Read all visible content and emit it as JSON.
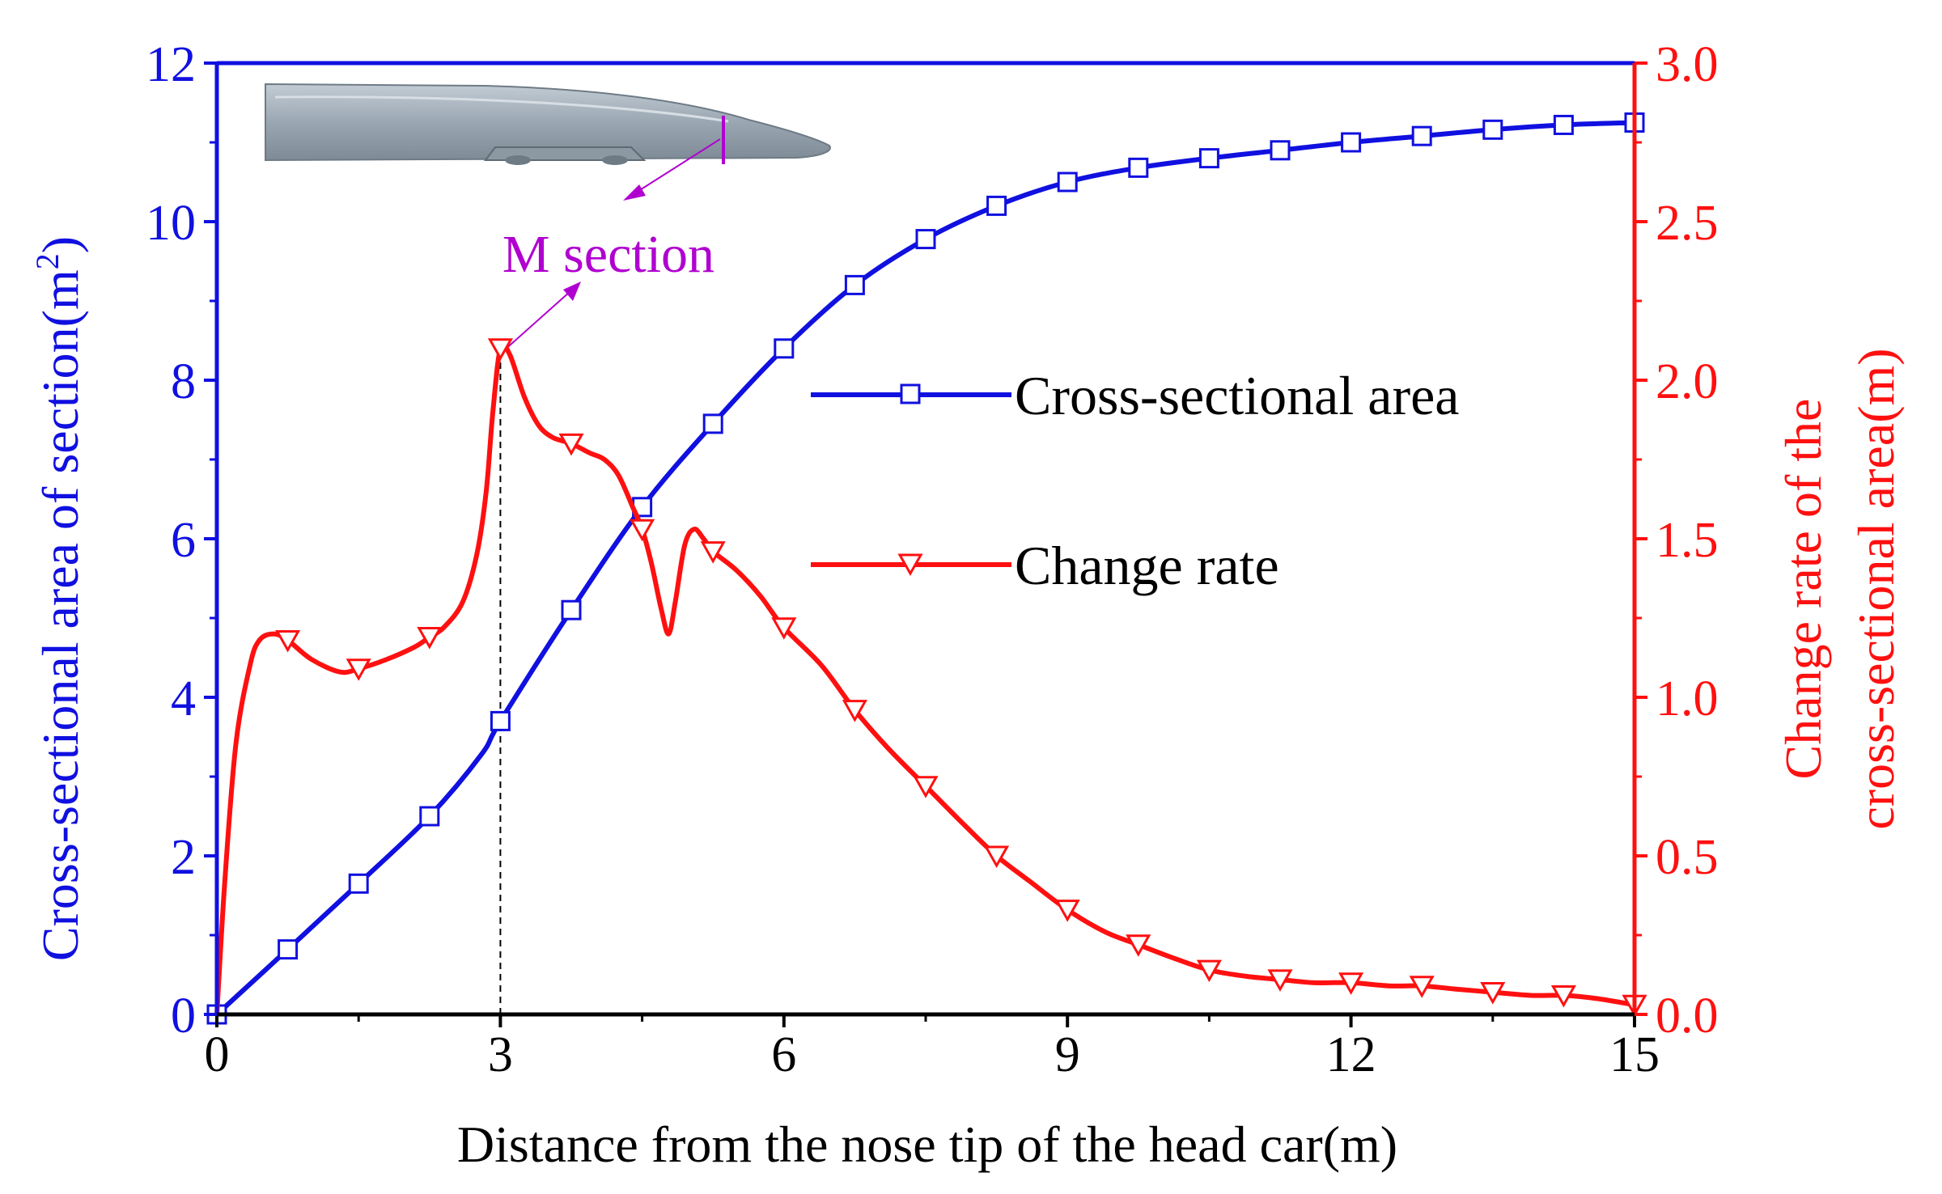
{
  "chart_data": {
    "type": "line",
    "title": "",
    "xlabel": "Distance from the nose tip of the head car(m)",
    "ylabel_left": "Cross-sectional area of section(m²)",
    "ylabel_left_main": "Cross-sectional area of section(m",
    "ylabel_left_sup": "2",
    "ylabel_left_close": ")",
    "ylabel_right": [
      "Change rate of the",
      "cross-sectional area(m)"
    ],
    "xlim": [
      0,
      15
    ],
    "ylim_left": [
      0,
      12
    ],
    "ylim_right": [
      0,
      3.0
    ],
    "x_ticks": [
      0,
      3,
      6,
      9,
      12,
      15
    ],
    "x_tick_labels": [
      "0",
      "3",
      "6",
      "9",
      "12",
      "15"
    ],
    "y_left_ticks": [
      0,
      2,
      4,
      6,
      8,
      10,
      12
    ],
    "y_left_tick_labels": [
      "0",
      "2",
      "4",
      "6",
      "8",
      "10",
      "12"
    ],
    "y_right_ticks": [
      0,
      0.5,
      1.0,
      1.5,
      2.0,
      2.5,
      3.0
    ],
    "y_right_tick_labels": [
      "0.0",
      "0.5",
      "1.0",
      "1.5",
      "2.0",
      "2.5",
      "3.0"
    ],
    "colors": {
      "area": "#1010e0",
      "rate": "#ff1010",
      "annotation": "#b000d0",
      "axis_x": "#000000"
    },
    "legend": {
      "placement": "center-right",
      "entries": [
        "Cross-sectional area",
        "Change rate"
      ]
    },
    "annotation": {
      "label": "M section",
      "x": 3.0
    },
    "series": [
      {
        "name": "Cross-sectional area",
        "axis": "left",
        "marker": "square",
        "curve": [
          [
            0,
            0
          ],
          [
            0.75,
            0.82
          ],
          [
            1.5,
            1.65
          ],
          [
            2.25,
            2.5
          ],
          [
            2.8,
            3.28
          ],
          [
            3.0,
            3.7
          ],
          [
            3.75,
            5.1
          ],
          [
            4.5,
            6.4
          ],
          [
            5.25,
            7.45
          ],
          [
            6.0,
            8.4
          ],
          [
            6.75,
            9.2
          ],
          [
            7.5,
            9.78
          ],
          [
            8.25,
            10.2
          ],
          [
            9.0,
            10.5
          ],
          [
            9.75,
            10.68
          ],
          [
            10.5,
            10.8
          ],
          [
            11.25,
            10.9
          ],
          [
            12.0,
            11.0
          ],
          [
            12.75,
            11.08
          ],
          [
            13.5,
            11.16
          ],
          [
            14.25,
            11.22
          ],
          [
            15.0,
            11.25
          ]
        ],
        "markers": [
          [
            0,
            0
          ],
          [
            0.75,
            0.82
          ],
          [
            1.5,
            1.65
          ],
          [
            2.25,
            2.5
          ],
          [
            3.0,
            3.7
          ],
          [
            3.75,
            5.1
          ],
          [
            4.5,
            6.4
          ],
          [
            5.25,
            7.45
          ],
          [
            6.0,
            8.4
          ],
          [
            6.75,
            9.2
          ],
          [
            7.5,
            9.78
          ],
          [
            8.25,
            10.2
          ],
          [
            9.0,
            10.5
          ],
          [
            9.75,
            10.68
          ],
          [
            10.5,
            10.8
          ],
          [
            11.25,
            10.9
          ],
          [
            12.0,
            11.0
          ],
          [
            12.75,
            11.08
          ],
          [
            13.5,
            11.16
          ],
          [
            14.25,
            11.22
          ],
          [
            15.0,
            11.25
          ]
        ]
      },
      {
        "name": "Change rate",
        "axis": "right",
        "marker": "triangle-down",
        "curve": [
          [
            0,
            0
          ],
          [
            0.08,
            0.4
          ],
          [
            0.2,
            0.85
          ],
          [
            0.35,
            1.1
          ],
          [
            0.45,
            1.18
          ],
          [
            0.6,
            1.2
          ],
          [
            0.75,
            1.18
          ],
          [
            1.0,
            1.12
          ],
          [
            1.3,
            1.08
          ],
          [
            1.5,
            1.09
          ],
          [
            1.8,
            1.12
          ],
          [
            2.1,
            1.16
          ],
          [
            2.25,
            1.19
          ],
          [
            2.4,
            1.22
          ],
          [
            2.6,
            1.3
          ],
          [
            2.75,
            1.45
          ],
          [
            2.85,
            1.65
          ],
          [
            2.92,
            1.9
          ],
          [
            3.0,
            2.1
          ],
          [
            3.1,
            2.08
          ],
          [
            3.25,
            1.95
          ],
          [
            3.4,
            1.86
          ],
          [
            3.55,
            1.82
          ],
          [
            3.75,
            1.8
          ],
          [
            3.95,
            1.77
          ],
          [
            4.1,
            1.75
          ],
          [
            4.25,
            1.7
          ],
          [
            4.4,
            1.6
          ],
          [
            4.5,
            1.53
          ],
          [
            4.6,
            1.42
          ],
          [
            4.7,
            1.28
          ],
          [
            4.78,
            1.2
          ],
          [
            4.85,
            1.3
          ],
          [
            4.95,
            1.48
          ],
          [
            5.05,
            1.53
          ],
          [
            5.15,
            1.5
          ],
          [
            5.25,
            1.46
          ],
          [
            5.5,
            1.4
          ],
          [
            5.75,
            1.32
          ],
          [
            6.0,
            1.22
          ],
          [
            6.4,
            1.1
          ],
          [
            6.75,
            0.96
          ],
          [
            7.1,
            0.84
          ],
          [
            7.5,
            0.72
          ],
          [
            7.9,
            0.6
          ],
          [
            8.25,
            0.5
          ],
          [
            8.6,
            0.42
          ],
          [
            9.0,
            0.33
          ],
          [
            9.4,
            0.26
          ],
          [
            9.75,
            0.22
          ],
          [
            10.1,
            0.18
          ],
          [
            10.5,
            0.14
          ],
          [
            10.9,
            0.12
          ],
          [
            11.25,
            0.11
          ],
          [
            11.6,
            0.1
          ],
          [
            12.0,
            0.1
          ],
          [
            12.4,
            0.09
          ],
          [
            12.75,
            0.09
          ],
          [
            13.1,
            0.08
          ],
          [
            13.5,
            0.07
          ],
          [
            13.9,
            0.06
          ],
          [
            14.25,
            0.06
          ],
          [
            14.6,
            0.05
          ],
          [
            15.0,
            0.03
          ]
        ],
        "markers": [
          [
            0.75,
            1.18
          ],
          [
            1.5,
            1.09
          ],
          [
            2.25,
            1.19
          ],
          [
            3.0,
            2.1
          ],
          [
            3.75,
            1.8
          ],
          [
            4.5,
            1.53
          ],
          [
            5.25,
            1.46
          ],
          [
            6.0,
            1.22
          ],
          [
            6.75,
            0.96
          ],
          [
            7.5,
            0.72
          ],
          [
            8.25,
            0.5
          ],
          [
            9.0,
            0.33
          ],
          [
            9.75,
            0.22
          ],
          [
            10.5,
            0.14
          ],
          [
            11.25,
            0.11
          ],
          [
            12.0,
            0.1
          ],
          [
            12.75,
            0.09
          ],
          [
            13.5,
            0.07
          ],
          [
            14.25,
            0.06
          ],
          [
            15.0,
            0.03
          ]
        ]
      }
    ]
  }
}
